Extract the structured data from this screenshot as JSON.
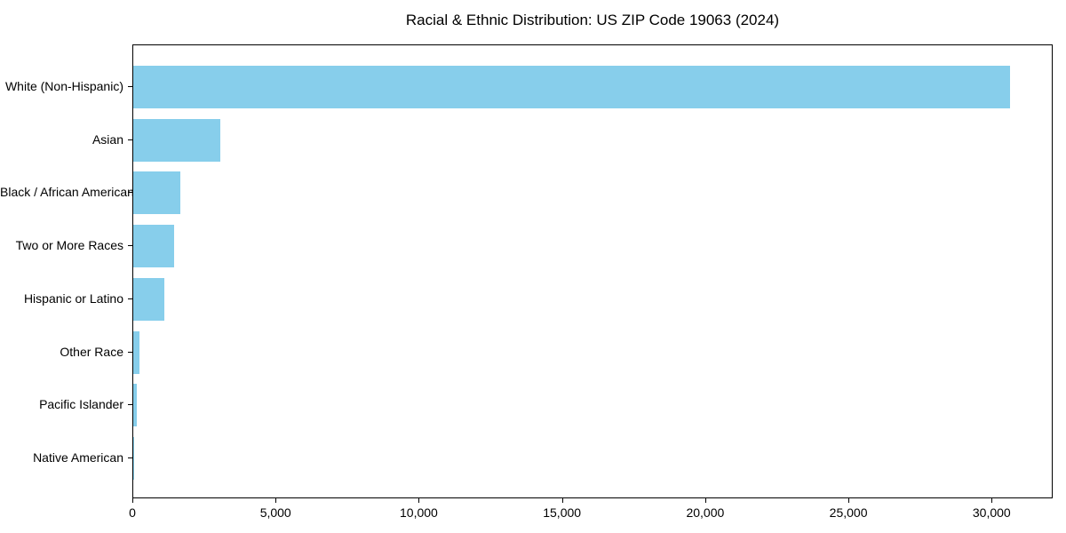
{
  "chart_data": {
    "type": "bar",
    "orientation": "horizontal",
    "title": "Racial & Ethnic Distribution: US ZIP Code 19063 (2024)",
    "categories": [
      "White (Non-Hispanic)",
      "Asian",
      "Black / African American",
      "Two or More Races",
      "Hispanic or Latino",
      "Other Race",
      "Pacific Islander",
      "Native American"
    ],
    "values": [
      30600,
      3040,
      1640,
      1420,
      1070,
      220,
      125,
      10
    ],
    "xlabel": "",
    "ylabel": "",
    "xlim": [
      0,
      32130
    ],
    "x_ticks": [
      0,
      5000,
      10000,
      15000,
      20000,
      25000,
      30000
    ],
    "x_tick_labels": [
      "0",
      "5,000",
      "10,000",
      "15,000",
      "20,000",
      "25,000",
      "30,000"
    ],
    "bar_color": "#87CEEB",
    "text_color": "#000000",
    "spine_color": "#000000",
    "background_color": "#ffffff",
    "grid": false,
    "legend": null
  }
}
